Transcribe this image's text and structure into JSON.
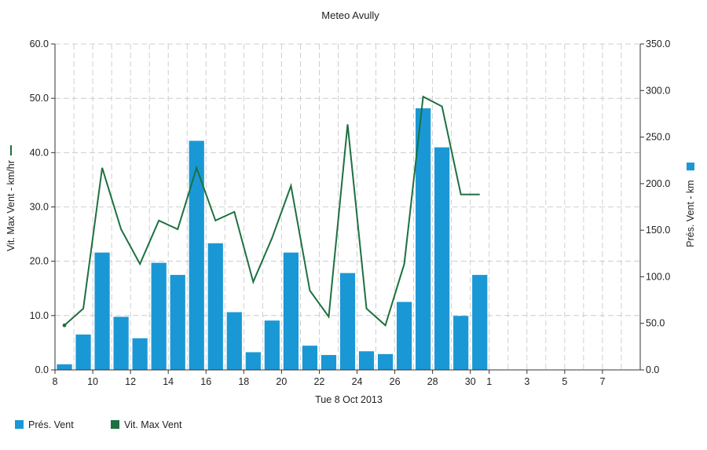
{
  "chart_data": {
    "type": "bar",
    "title": "Meteo  Avully",
    "xlabel": "Tue 8 Oct 2013",
    "ylabel_left": "Vit. Max Vent - km/hr",
    "ylabel_right": "Prés. Vent - km",
    "left_axis": {
      "min": 0,
      "max": 60,
      "ticks": [
        "0.0",
        "10.0",
        "20.0",
        "30.0",
        "40.0",
        "50.0",
        "60.0"
      ],
      "values": [
        0,
        10,
        20,
        30,
        40,
        50,
        60
      ]
    },
    "right_axis": {
      "min": 0,
      "max": 350,
      "ticks": [
        "0.0",
        "50.0",
        "100.0",
        "150.0",
        "200.0",
        "250.0",
        "300.0",
        "350.0"
      ],
      "values": [
        0,
        50,
        100,
        150,
        200,
        250,
        300,
        350
      ]
    },
    "x_ticks": [
      "8",
      "10",
      "12",
      "14",
      "16",
      "18",
      "20",
      "22",
      "24",
      "26",
      "28",
      "30",
      "1",
      "3",
      "5",
      "7"
    ],
    "x_tick_pos": [
      0,
      2,
      4,
      6,
      8,
      10,
      12,
      14,
      16,
      18,
      20,
      22,
      23,
      25,
      27,
      29
    ],
    "x_range": [
      0,
      31
    ],
    "grid": true,
    "legend_position": "bottom-left",
    "series": [
      {
        "name": "Prés. Vent",
        "kind": "bar",
        "axis": "right",
        "color": "#1a98d5",
        "x": [
          0.5,
          1.5,
          2.5,
          3.5,
          4.5,
          5.5,
          6.5,
          7.5,
          8.5,
          9.5,
          10.5,
          11.5,
          12.5,
          13.5,
          14.5,
          15.5,
          16.5,
          17.5,
          18.5,
          19.5,
          20.5,
          21.5,
          22.5
        ],
        "values": [
          6,
          38,
          126,
          57,
          34,
          115,
          102,
          246,
          136,
          62,
          19,
          53,
          126,
          26,
          16,
          104,
          20,
          17,
          73,
          281,
          239,
          58,
          102
        ]
      },
      {
        "name": "Vit. Max Vent",
        "kind": "line",
        "axis": "left",
        "color": "#1e7040",
        "x": [
          0.5,
          1.5,
          2.5,
          3.5,
          4.5,
          5.5,
          6.5,
          7.5,
          8.5,
          9.5,
          10.5,
          11.5,
          12.5,
          13.5,
          14.5,
          15.5,
          16.5,
          17.5,
          18.5,
          19.5,
          20.5,
          21.5,
          22.5
        ],
        "values": [
          8.2,
          11.3,
          37.2,
          25.9,
          19.5,
          27.5,
          25.9,
          37.2,
          27.5,
          29.1,
          16.2,
          24.3,
          33.9,
          14.6,
          9.8,
          45.2,
          11.3,
          8.2,
          19.5,
          50.3,
          48.5,
          32.3,
          32.3
        ]
      }
    ]
  }
}
